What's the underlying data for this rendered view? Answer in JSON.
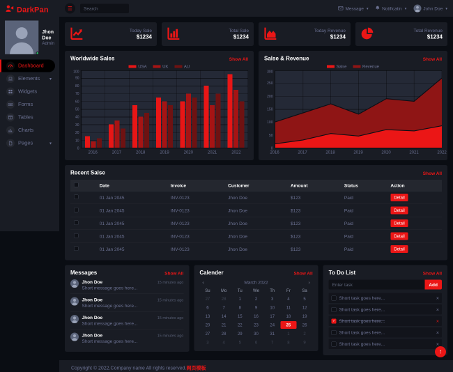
{
  "brand": {
    "text": "DarkPan"
  },
  "sidebar": {
    "user": {
      "name": "Jhon Doe",
      "role": "Admin"
    },
    "items": [
      {
        "label": "Dashboard",
        "icon": "tachometer-icon",
        "active": true,
        "chevron": false
      },
      {
        "label": "Elements",
        "icon": "laptop-icon",
        "active": false,
        "chevron": true
      },
      {
        "label": "Widgets",
        "icon": "grid-icon",
        "active": false,
        "chevron": false
      },
      {
        "label": "Forms",
        "icon": "keyboard-icon",
        "active": false,
        "chevron": false
      },
      {
        "label": "Tables",
        "icon": "table-icon",
        "active": false,
        "chevron": false
      },
      {
        "label": "Charts",
        "icon": "chart-bars-icon",
        "active": false,
        "chevron": false
      },
      {
        "label": "Pages",
        "icon": "file-icon",
        "active": false,
        "chevron": true
      }
    ]
  },
  "navbar": {
    "search_placeholder": "Search",
    "message_label": "Message",
    "notification_label": "Notificatin",
    "user_label": "John Doe"
  },
  "stat_cards": [
    {
      "icon": "chart-line-icon",
      "label": "Today Sale",
      "value": "$1234"
    },
    {
      "icon": "chart-bar-icon",
      "label": "Total Sale",
      "value": "$1234"
    },
    {
      "icon": "chart-area-icon",
      "label": "Today Revenue",
      "value": "$1234"
    },
    {
      "icon": "chart-pie-icon",
      "label": "Total Revenue",
      "value": "$1234"
    }
  ],
  "panels": {
    "worldwide_sales": {
      "title": "Worldwide Sales",
      "show_all": "Show All"
    },
    "sales_revenue": {
      "title": "Salse & Revenue",
      "show_all": "Show All"
    },
    "recent_sales": {
      "title": "Recent Salse",
      "show_all": "Show All"
    },
    "messages": {
      "title": "Messages",
      "show_all": "Show All"
    },
    "calendar": {
      "title": "Calender",
      "show_all": "Show All"
    },
    "todo": {
      "title": "To Do List",
      "show_all": "Show All"
    }
  },
  "chart_data": [
    {
      "type": "bar",
      "title": "Worldwide Sales",
      "categories": [
        "2016",
        "2017",
        "2018",
        "2019",
        "2020",
        "2021",
        "2022"
      ],
      "series": [
        {
          "name": "USA",
          "color": "#e81616",
          "values": [
            15,
            30,
            55,
            65,
            60,
            80,
            95
          ]
        },
        {
          "name": "UK",
          "color": "#a61414",
          "values": [
            8,
            35,
            40,
            60,
            70,
            55,
            75
          ]
        },
        {
          "name": "AU",
          "color": "#6e1212",
          "values": [
            12,
            25,
            45,
            55,
            65,
            70,
            60
          ]
        }
      ],
      "xlabel": "",
      "ylabel": "",
      "ylim": [
        0,
        100
      ],
      "ytick_step": 10,
      "grid": true,
      "legend_position": "top"
    },
    {
      "type": "area",
      "title": "Salse & Revenue",
      "categories": [
        "2016",
        "2017",
        "2018",
        "2019",
        "2020",
        "2021",
        "2022"
      ],
      "series": [
        {
          "name": "Salse",
          "color": "#eb1616",
          "values": [
            15,
            30,
            55,
            45,
            70,
            65,
            85
          ]
        },
        {
          "name": "Revenue",
          "color": "#8f1515",
          "values": [
            100,
            135,
            170,
            130,
            190,
            180,
            270
          ]
        }
      ],
      "xlabel": "",
      "ylabel": "",
      "ylim": [
        0,
        300
      ],
      "ytick_step": 50,
      "grid": true,
      "legend_position": "top",
      "stacked_look": "revenue behind sales, filled to baseline"
    }
  ],
  "recent_sales": {
    "columns": [
      "Date",
      "Invoice",
      "Customer",
      "Amount",
      "Status",
      "Action"
    ],
    "rows": [
      {
        "date": "01 Jan 2045",
        "invoice": "INV-0123",
        "customer": "Jhon Doe",
        "amount": "$123",
        "status": "Paid",
        "action": "Detail"
      },
      {
        "date": "01 Jan 2045",
        "invoice": "INV-0123",
        "customer": "Jhon Doe",
        "amount": "$123",
        "status": "Paid",
        "action": "Detail"
      },
      {
        "date": "01 Jan 2045",
        "invoice": "INV-0123",
        "customer": "Jhon Doe",
        "amount": "$123",
        "status": "Paid",
        "action": "Detail"
      },
      {
        "date": "01 Jan 2045",
        "invoice": "INV-0123",
        "customer": "Jhon Doe",
        "amount": "$123",
        "status": "Paid",
        "action": "Detail"
      },
      {
        "date": "01 Jan 2045",
        "invoice": "INV-0123",
        "customer": "Jhon Doe",
        "amount": "$123",
        "status": "Paid",
        "action": "Detail"
      }
    ]
  },
  "messages": [
    {
      "name": "Jhon Doe",
      "time": "15 minutes ago",
      "text": "Short message goes here..."
    },
    {
      "name": "Jhon Doe",
      "time": "15 minutes ago",
      "text": "Short message goes here..."
    },
    {
      "name": "Jhon Doe",
      "time": "15 minutes ago",
      "text": "Short message goes here..."
    },
    {
      "name": "Jhon Doe",
      "time": "15 minutes ago",
      "text": "Short message goes here..."
    }
  ],
  "calendar": {
    "month": "March 2022",
    "prev": "‹",
    "next": "›",
    "weekdays": [
      "Su",
      "Mo",
      "Tu",
      "We",
      "Th",
      "Fr",
      "Sa"
    ],
    "weeks": [
      [
        {
          "d": "27",
          "out": true
        },
        {
          "d": "28",
          "out": true
        },
        {
          "d": "1"
        },
        {
          "d": "2"
        },
        {
          "d": "3"
        },
        {
          "d": "4"
        },
        {
          "d": "5"
        }
      ],
      [
        {
          "d": "6"
        },
        {
          "d": "7"
        },
        {
          "d": "8"
        },
        {
          "d": "9"
        },
        {
          "d": "10"
        },
        {
          "d": "11"
        },
        {
          "d": "12"
        }
      ],
      [
        {
          "d": "13"
        },
        {
          "d": "14"
        },
        {
          "d": "15"
        },
        {
          "d": "16"
        },
        {
          "d": "17"
        },
        {
          "d": "18"
        },
        {
          "d": "19"
        }
      ],
      [
        {
          "d": "20"
        },
        {
          "d": "21"
        },
        {
          "d": "22"
        },
        {
          "d": "23"
        },
        {
          "d": "24"
        },
        {
          "d": "25",
          "sel": true
        },
        {
          "d": "26"
        }
      ],
      [
        {
          "d": "27"
        },
        {
          "d": "28"
        },
        {
          "d": "29"
        },
        {
          "d": "30"
        },
        {
          "d": "31"
        },
        {
          "d": "1",
          "out": true
        },
        {
          "d": "2",
          "out": true
        }
      ],
      [
        {
          "d": "3",
          "out": true
        },
        {
          "d": "4",
          "out": true
        },
        {
          "d": "5",
          "out": true
        },
        {
          "d": "6",
          "out": true
        },
        {
          "d": "7",
          "out": true
        },
        {
          "d": "8",
          "out": true
        },
        {
          "d": "9",
          "out": true
        }
      ]
    ]
  },
  "todo": {
    "input_placeholder": "Enter task",
    "add_label": "Add",
    "remove_glyph": "×",
    "items": [
      {
        "text": "Short task goes here...",
        "done": false
      },
      {
        "text": "Short task goes here...",
        "done": false
      },
      {
        "text": "Short task goes here...",
        "done": true
      },
      {
        "text": "Short task goes here...",
        "done": false
      },
      {
        "text": "Short task goes here...",
        "done": false
      }
    ]
  },
  "footer": {
    "text": "Copyright © 2022.Company name All rights reserved.",
    "link": "网页模板"
  },
  "back_to_top": "↑",
  "colors": {
    "primary": "#eb1616",
    "panel": "#191c24",
    "background": "#0a0d13",
    "muted_text": "#6c7293",
    "success": "#2dc26b"
  }
}
